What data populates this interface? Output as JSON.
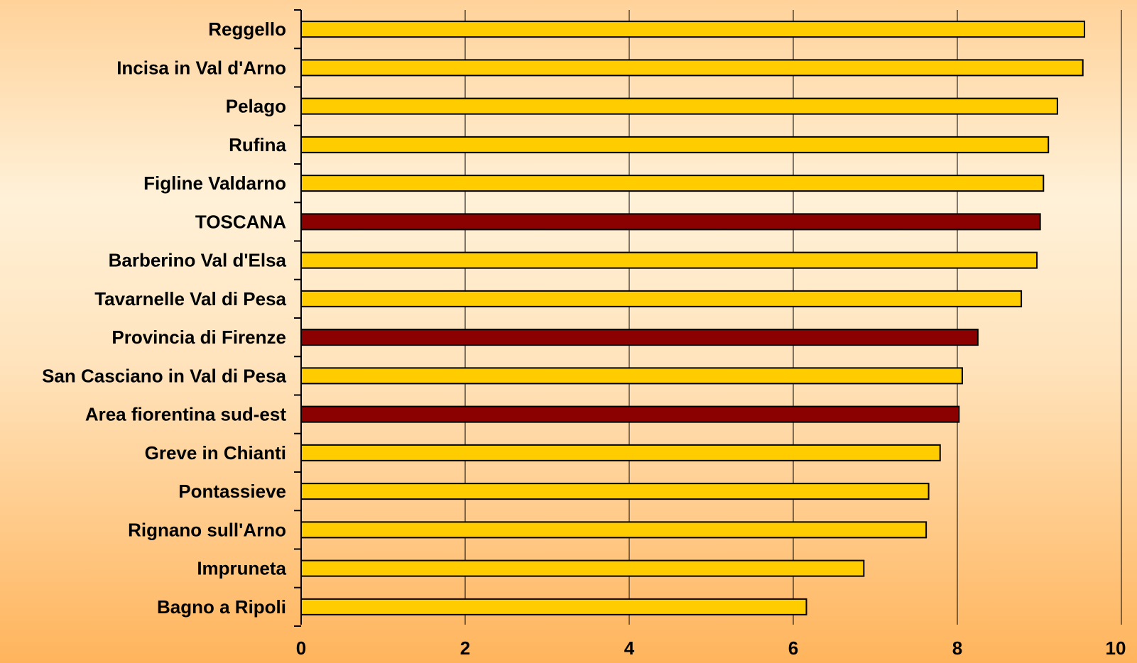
{
  "chart_data": {
    "type": "bar",
    "orientation": "horizontal",
    "title": "",
    "xlabel": "",
    "ylabel": "",
    "xlim": [
      0,
      10
    ],
    "x_ticks": [
      0,
      2,
      4,
      6,
      8,
      10
    ],
    "x_tick_labels": [
      "0",
      "2",
      "4",
      "6",
      "8",
      "10"
    ],
    "grid": "vertical",
    "legend": "none",
    "colors": {
      "default_bar": "#FFCC00",
      "highlight_bar": "#8B0000",
      "bar_stroke": "#000000",
      "gridline": "#000000",
      "axis": "#000000"
    },
    "bars": [
      {
        "label": "Reggello",
        "value": 9.55,
        "highlight": false
      },
      {
        "label": "Incisa in Val d'Arno",
        "value": 9.53,
        "highlight": false
      },
      {
        "label": "Pelago",
        "value": 9.22,
        "highlight": false
      },
      {
        "label": "Rufina",
        "value": 9.11,
        "highlight": false
      },
      {
        "label": "Figline Valdarno",
        "value": 9.05,
        "highlight": false
      },
      {
        "label": "TOSCANA",
        "value": 9.01,
        "highlight": true
      },
      {
        "label": "Barberino Val d'Elsa",
        "value": 8.97,
        "highlight": false
      },
      {
        "label": "Tavarnelle Val di Pesa",
        "value": 8.78,
        "highlight": false
      },
      {
        "label": "Provincia di Firenze",
        "value": 8.25,
        "highlight": true
      },
      {
        "label": "San Casciano in Val di Pesa",
        "value": 8.06,
        "highlight": false
      },
      {
        "label": "Area fiorentina sud-est",
        "value": 8.02,
        "highlight": true
      },
      {
        "label": "Greve in Chianti",
        "value": 7.79,
        "highlight": false
      },
      {
        "label": "Pontassieve",
        "value": 7.65,
        "highlight": false
      },
      {
        "label": "Rignano sull'Arno",
        "value": 7.62,
        "highlight": false
      },
      {
        "label": "Impruneta",
        "value": 6.86,
        "highlight": false
      },
      {
        "label": "Bagno a Ripoli",
        "value": 6.16,
        "highlight": false
      }
    ]
  }
}
